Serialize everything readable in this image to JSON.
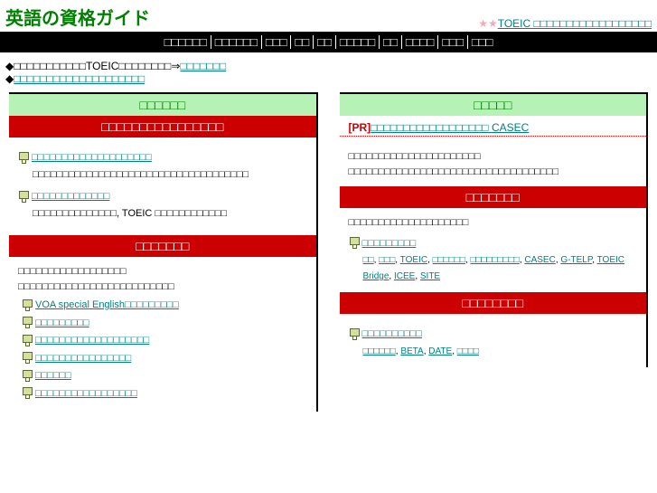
{
  "header": {
    "site_title": "英語の資格ガイド",
    "top_right_stars": "★★",
    "top_right_prefix": "TOEIC ",
    "top_right_link": "□□□□□□□□□□□□□□□□□□"
  },
  "nav": [
    "□□□□□□",
    "□□□□□□",
    "□□□",
    "□□",
    "□□",
    "□□□□□",
    "□□",
    "□□□□",
    "□□□",
    "□□□"
  ],
  "intro": {
    "line1_prefix": "◆□□□□□□□□□□□TOEIC□□□□□□□□⇒",
    "line1_link": "□□□□□□□",
    "line2_prefix": "◆",
    "line2_link": "□□□□□□□□□□□□□□□□□□□□"
  },
  "left": {
    "head1": "□□□□□□",
    "red1": "□□□□□□□□□□□□□□□□",
    "items1": [
      {
        "title": "□□□□□□□□□□□□□□□□□□□□",
        "desc": "□□□□□□□□□□□□□□□□□□□□□□□□□□□□□□□□□□□□"
      },
      {
        "title": "□□□□□□□□□□□□□",
        "desc": "□□□□□□□□□□□□□□, TOEIC □□□□□□□□□□□□"
      }
    ],
    "red2": "□□□□□□□",
    "body2_line1": "□□□□□□□□□□□□□□□□□□",
    "body2_line2": "□□□□□□□□□□□□□□□□□□□□□□□□□□",
    "list2": [
      "VOA special English□□□□□□□□□",
      "□□□□□□□□□",
      "□□□□□□□□□□□□□□□□□□□",
      "□□□□□□□□□□□□□□□□",
      "□□□□□□",
      "□□□□□□□□□□□□□□□□□"
    ]
  },
  "right": {
    "head1": "□□□□□",
    "pr_tag": "[PR]",
    "pr_link": "□□□□□□□□□□□□□□□□□□ CASEC",
    "body1_line1": "□□□□□□□□□□□□□□□□□□□□□□",
    "body1_line2": "□□□□□□□□□□□□□□□□□□□□□□□□□□□□□□□□□□□",
    "red1": "□□□□□□□",
    "body2": "□□□□□□□□□□□□□□□□□□□□",
    "cat1_title": "□□□□□□□□□",
    "cat1_links": [
      "□□",
      "□□□",
      "TOEIC",
      "□□□□□□",
      "□□□□□□□□□",
      "CASEC",
      "G-TELP",
      "TOEIC Bridge",
      "ICEE",
      "SITE"
    ],
    "red2": "□□□□□□□□",
    "cat2_title": "□□□□□□□□□□",
    "cat2_links": [
      "□□□□□□",
      "BETA",
      "DATE",
      "□□□□"
    ]
  }
}
